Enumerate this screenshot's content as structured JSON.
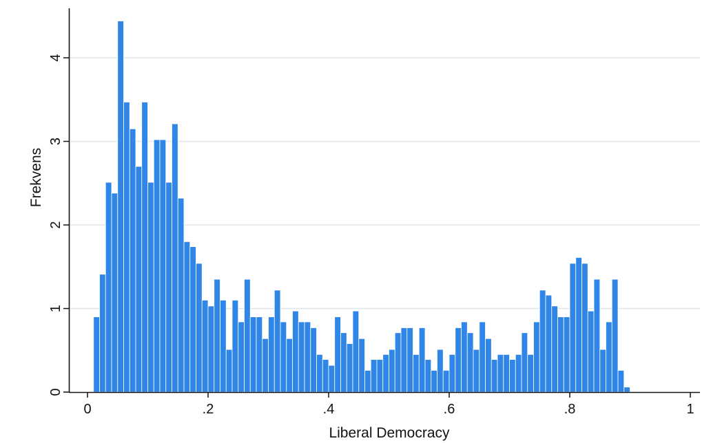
{
  "chart_data": {
    "type": "bar",
    "xlabel": "Liberal Democracy",
    "ylabel": "Frekvens",
    "xlim": [
      0,
      1
    ],
    "ylim": [
      0,
      4.5
    ],
    "bin_width": 0.01,
    "grid": "horizontal",
    "legend": "none",
    "colors": {
      "bar": "#2f86e6",
      "grid": "#dde6ea",
      "axis": "#111111"
    },
    "xticks": [
      {
        "value": 0,
        "label": "0"
      },
      {
        "value": 0.2,
        "label": ".2"
      },
      {
        "value": 0.4,
        "label": ".4"
      },
      {
        "value": 0.6,
        "label": ".6"
      },
      {
        "value": 0.8,
        "label": ".8"
      },
      {
        "value": 1,
        "label": "1"
      }
    ],
    "yticks": [
      {
        "value": 0,
        "label": "0"
      },
      {
        "value": 1,
        "label": "1"
      },
      {
        "value": 2,
        "label": "2"
      },
      {
        "value": 3,
        "label": "3"
      },
      {
        "value": 4,
        "label": "4"
      }
    ],
    "bins_start": [
      0.01,
      0.02,
      0.03,
      0.04,
      0.05,
      0.06,
      0.07,
      0.08,
      0.09,
      0.1,
      0.11,
      0.12,
      0.13,
      0.14,
      0.15,
      0.16,
      0.17,
      0.18,
      0.19,
      0.2,
      0.21,
      0.22,
      0.23,
      0.24,
      0.25,
      0.26,
      0.27,
      0.28,
      0.29,
      0.3,
      0.31,
      0.32,
      0.33,
      0.34,
      0.35,
      0.36,
      0.37,
      0.38,
      0.39,
      0.4,
      0.41,
      0.42,
      0.43,
      0.44,
      0.45,
      0.46,
      0.47,
      0.48,
      0.49,
      0.5,
      0.51,
      0.52,
      0.53,
      0.54,
      0.55,
      0.56,
      0.57,
      0.58,
      0.59,
      0.6,
      0.61,
      0.62,
      0.63,
      0.64,
      0.65,
      0.66,
      0.67,
      0.68,
      0.69,
      0.7,
      0.71,
      0.72,
      0.73,
      0.74,
      0.75,
      0.76,
      0.77,
      0.78,
      0.79,
      0.8,
      0.81,
      0.82,
      0.83,
      0.84,
      0.85,
      0.86,
      0.87,
      0.88,
      0.89
    ],
    "values": [
      0.9,
      1.41,
      2.51,
      2.38,
      4.44,
      3.47,
      3.15,
      2.7,
      3.47,
      2.51,
      3.02,
      3.02,
      2.51,
      3.21,
      2.32,
      1.8,
      1.74,
      1.54,
      1.1,
      1.03,
      1.35,
      1.1,
      0.51,
      1.1,
      0.84,
      1.35,
      0.9,
      0.9,
      0.64,
      0.9,
      1.22,
      0.84,
      0.64,
      0.97,
      0.84,
      0.84,
      0.77,
      0.45,
      0.39,
      0.32,
      0.9,
      0.71,
      0.58,
      0.97,
      0.64,
      0.26,
      0.39,
      0.39,
      0.45,
      0.51,
      0.71,
      0.77,
      0.77,
      0.45,
      0.77,
      0.39,
      0.26,
      0.51,
      0.26,
      0.45,
      0.77,
      0.84,
      0.71,
      0.51,
      0.84,
      0.64,
      0.39,
      0.45,
      0.45,
      0.39,
      0.45,
      0.71,
      0.45,
      0.84,
      1.22,
      1.16,
      1.03,
      0.9,
      0.9,
      1.54,
      1.61,
      1.54,
      0.97,
      1.35,
      0.51,
      0.84,
      1.35,
      0.26,
      0.06
    ]
  }
}
